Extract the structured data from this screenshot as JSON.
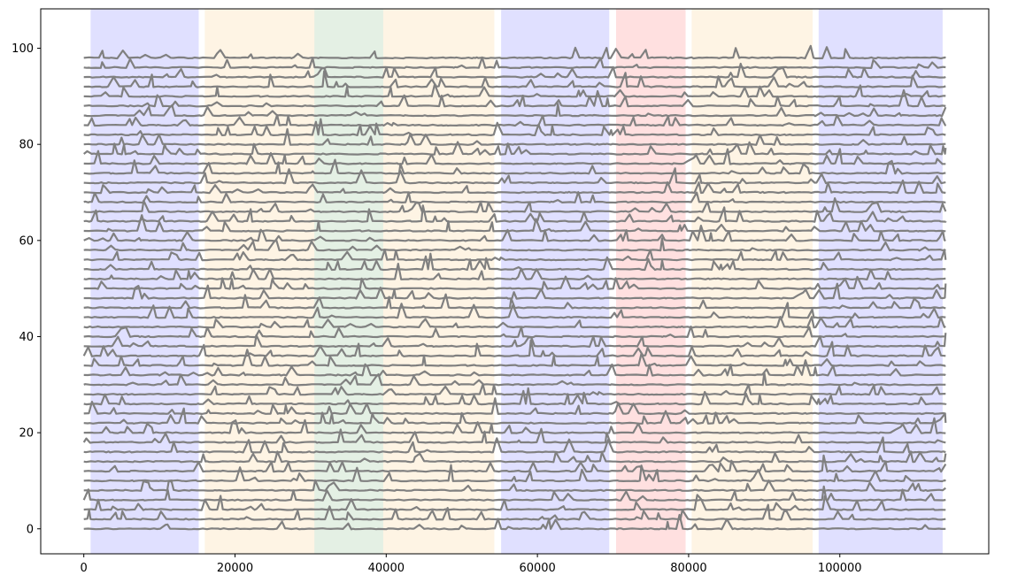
{
  "chart_data": {
    "type": "line",
    "title": "",
    "xlabel": "",
    "ylabel": "",
    "xlim": [
      -5700,
      119700
    ],
    "ylim": [
      -5.2,
      108.2
    ],
    "x_ticks": [
      0,
      20000,
      40000,
      60000,
      80000,
      100000
    ],
    "x_tick_labels": [
      "0",
      "20000",
      "40000",
      "60000",
      "80000",
      "100000"
    ],
    "y_ticks": [
      0,
      20,
      40,
      60,
      80,
      100
    ],
    "y_tick_labels": [
      "0",
      "20",
      "40",
      "60",
      "80",
      "100"
    ],
    "grid": false,
    "legend": "none",
    "x_range_of_traces": [
      0,
      114000
    ],
    "trace_offsets": {
      "start": 0,
      "step": 2,
      "count": 50
    },
    "trace_color": "#808080",
    "shaded_regions": [
      {
        "x0": 900,
        "x1": 15200,
        "color": "#0000ff",
        "alpha": 0.12
      },
      {
        "x0": 16000,
        "x1": 30500,
        "color": "#f5a623",
        "alpha": 0.12
      },
      {
        "x0": 30500,
        "x1": 39600,
        "color": "#2e8b2e",
        "alpha": 0.13
      },
      {
        "x0": 39600,
        "x1": 54300,
        "color": "#f5a623",
        "alpha": 0.12
      },
      {
        "x0": 55200,
        "x1": 69500,
        "color": "#0000ff",
        "alpha": 0.12
      },
      {
        "x0": 70400,
        "x1": 79600,
        "color": "#ff0000",
        "alpha": 0.12
      },
      {
        "x0": 80400,
        "x1": 96400,
        "color": "#f5a623",
        "alpha": 0.12
      },
      {
        "x0": 97200,
        "x1": 113600,
        "color": "#0000ff",
        "alpha": 0.12
      }
    ]
  }
}
